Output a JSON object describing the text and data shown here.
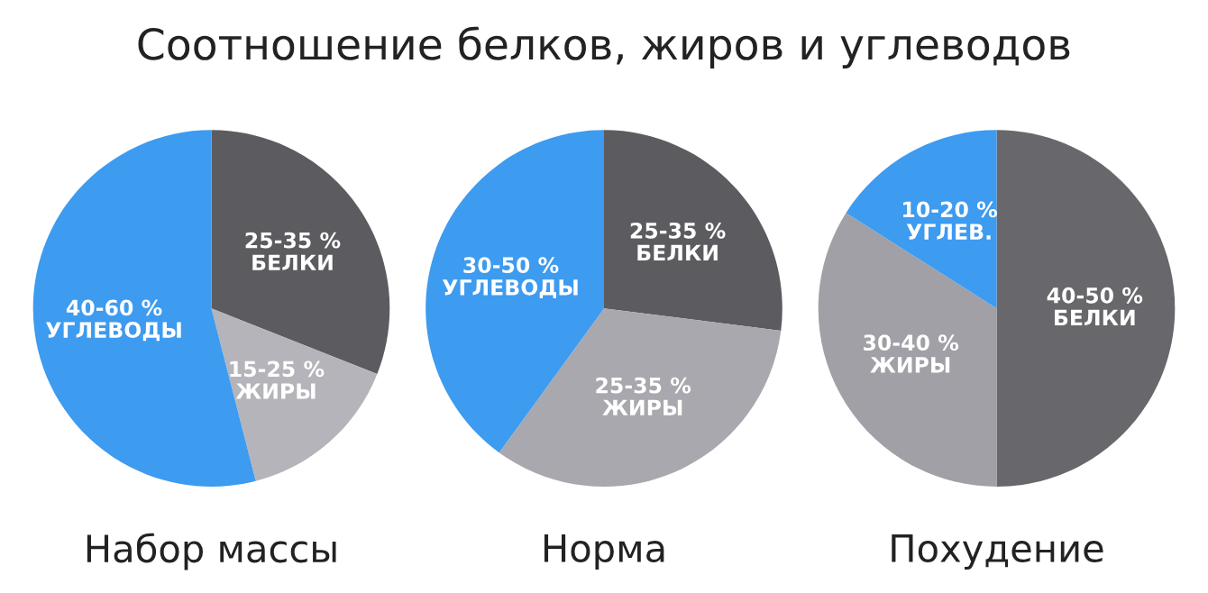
{
  "chart_data": [
    {
      "type": "pie",
      "title": "Соотношение белков, жиров и углеводов",
      "xlabel": "Набор массы",
      "categories": [
        "25-35 %\nБЕЛКИ",
        "15-25 %\nЖИРЫ",
        "40-60 %\nУГЛЕВОДЫ"
      ],
      "values": [
        31,
        15,
        54
      ],
      "colors": [
        "#5c5c60",
        "#b4b4ba",
        "#3d9bf0"
      ]
    },
    {
      "type": "pie",
      "xlabel": "Норма",
      "categories": [
        "25-35 %\nБЕЛКИ",
        "25-35 %\nЖИРЫ",
        "30-50 %\nУГЛЕВОДЫ"
      ],
      "values": [
        27,
        33,
        40
      ],
      "colors": [
        "#5c5c60",
        "#a8a8ae",
        "#3d9bf0"
      ]
    },
    {
      "type": "pie",
      "xlabel": "Похудение",
      "categories": [
        "40-50 %\nБЕЛКИ",
        "30-40 %\nЖИРЫ",
        "10-20 %\nУГЛЕВ."
      ],
      "values": [
        50,
        34,
        16
      ],
      "colors": [
        "#68686c",
        "#a0a0a6",
        "#3d9bf0"
      ]
    }
  ]
}
